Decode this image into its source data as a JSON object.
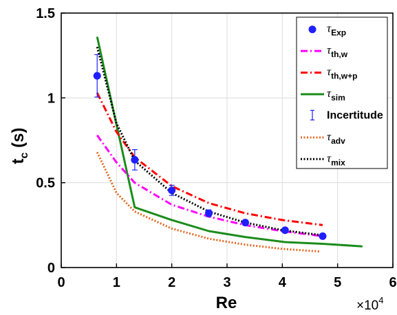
{
  "chart_data": {
    "type": "line",
    "xlabel": "Re",
    "ylabel": "t",
    "ylabel_sub": "c",
    "ylabel_unit": " (s)",
    "x_multiplier": {
      "base": "×10",
      "exponent": "4"
    },
    "xlim": [
      0,
      60000
    ],
    "ylim": [
      0,
      1.5
    ],
    "xticks": [
      0,
      10000,
      20000,
      30000,
      40000,
      50000,
      60000
    ],
    "xtick_labels": [
      "0",
      "1",
      "2",
      "3",
      "4",
      "5",
      "6"
    ],
    "yticks": [
      0,
      0.5,
      1,
      1.5
    ],
    "ytick_labels": [
      "0",
      "0.5",
      "1",
      "1.5"
    ],
    "grid": true,
    "legend_position": "top-right",
    "series": [
      {
        "name": "τ",
        "sub": "Exp",
        "style": "markers",
        "color": "#1f1fff",
        "x": [
          6500,
          13300,
          20000,
          26700,
          33300,
          40500,
          47300
        ],
        "y": [
          1.13,
          0.635,
          0.455,
          0.32,
          0.265,
          0.22,
          0.185
        ]
      },
      {
        "name": "τ",
        "sub": "th,w",
        "style": "dashdot",
        "color": "#ff00ff",
        "x": [
          6500,
          10000,
          13300,
          20000,
          26700,
          33300,
          40000,
          47300
        ],
        "y": [
          0.78,
          0.62,
          0.5,
          0.37,
          0.3,
          0.25,
          0.215,
          0.185
        ]
      },
      {
        "name": "τ",
        "sub": "th,w+p",
        "style": "dashdot",
        "color": "#ff0000",
        "x": [
          6500,
          10000,
          13300,
          20000,
          26700,
          33300,
          40000,
          47300
        ],
        "y": [
          1.03,
          0.8,
          0.65,
          0.48,
          0.38,
          0.32,
          0.28,
          0.25
        ]
      },
      {
        "name": "τ",
        "sub": "sim",
        "style": "solid",
        "color": "#1a8c1a",
        "x": [
          6500,
          13300,
          20000,
          26700,
          33300,
          40500,
          47300,
          54500
        ],
        "y": [
          1.36,
          0.355,
          0.28,
          0.215,
          0.18,
          0.15,
          0.14,
          0.125
        ]
      },
      {
        "name": "Incertitude",
        "style": "errorbar",
        "color": "#1f1fff",
        "x": [
          6500,
          13300,
          20000,
          26700,
          33300,
          40500,
          47300
        ],
        "y": [
          1.13,
          0.635,
          0.455,
          0.32,
          0.265,
          0.22,
          0.185
        ],
        "err": [
          0.125,
          0.06,
          0.03,
          0.02,
          0.015,
          0.012,
          0.01
        ]
      },
      {
        "name": "τ",
        "sub": "adv",
        "style": "dotted",
        "color": "#e4661e",
        "x": [
          6500,
          10000,
          13300,
          20000,
          26700,
          33300,
          40000,
          46700
        ],
        "y": [
          0.68,
          0.44,
          0.33,
          0.23,
          0.17,
          0.135,
          0.11,
          0.095
        ]
      },
      {
        "name": "τ",
        "sub": "mix",
        "style": "dotted",
        "color": "#000000",
        "x": [
          6500,
          10000,
          13300,
          20000,
          26700,
          33300,
          40000,
          47300
        ],
        "y": [
          1.3,
          0.85,
          0.63,
          0.44,
          0.33,
          0.265,
          0.22,
          0.19
        ]
      }
    ]
  }
}
